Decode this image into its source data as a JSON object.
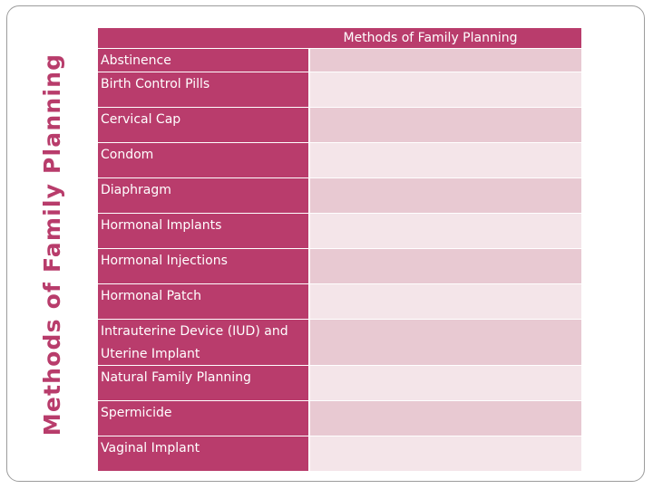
{
  "slide": {
    "title": "Methods of Family Planning"
  },
  "table": {
    "header": "Methods of Family Planning",
    "rows": [
      {
        "label": "Abstinence"
      },
      {
        "label": "Birth Control Pills"
      },
      {
        "label": "Cervical Cap"
      },
      {
        "label": "Condom"
      },
      {
        "label": "Diaphragm"
      },
      {
        "label": "Hormonal Implants"
      },
      {
        "label": "Hormonal Injections"
      },
      {
        "label": "Hormonal Patch"
      },
      {
        "label": "Intrauterine Device (IUD) and Uterine Implant"
      },
      {
        "label": "Natural Family Planning"
      },
      {
        "label": "Spermicide"
      },
      {
        "label": "Vaginal Implant"
      }
    ]
  },
  "colors": {
    "accent": "#b93c6c",
    "row_tint_dark": "#e8c9d2",
    "row_tint_light": "#f4e5e9"
  }
}
